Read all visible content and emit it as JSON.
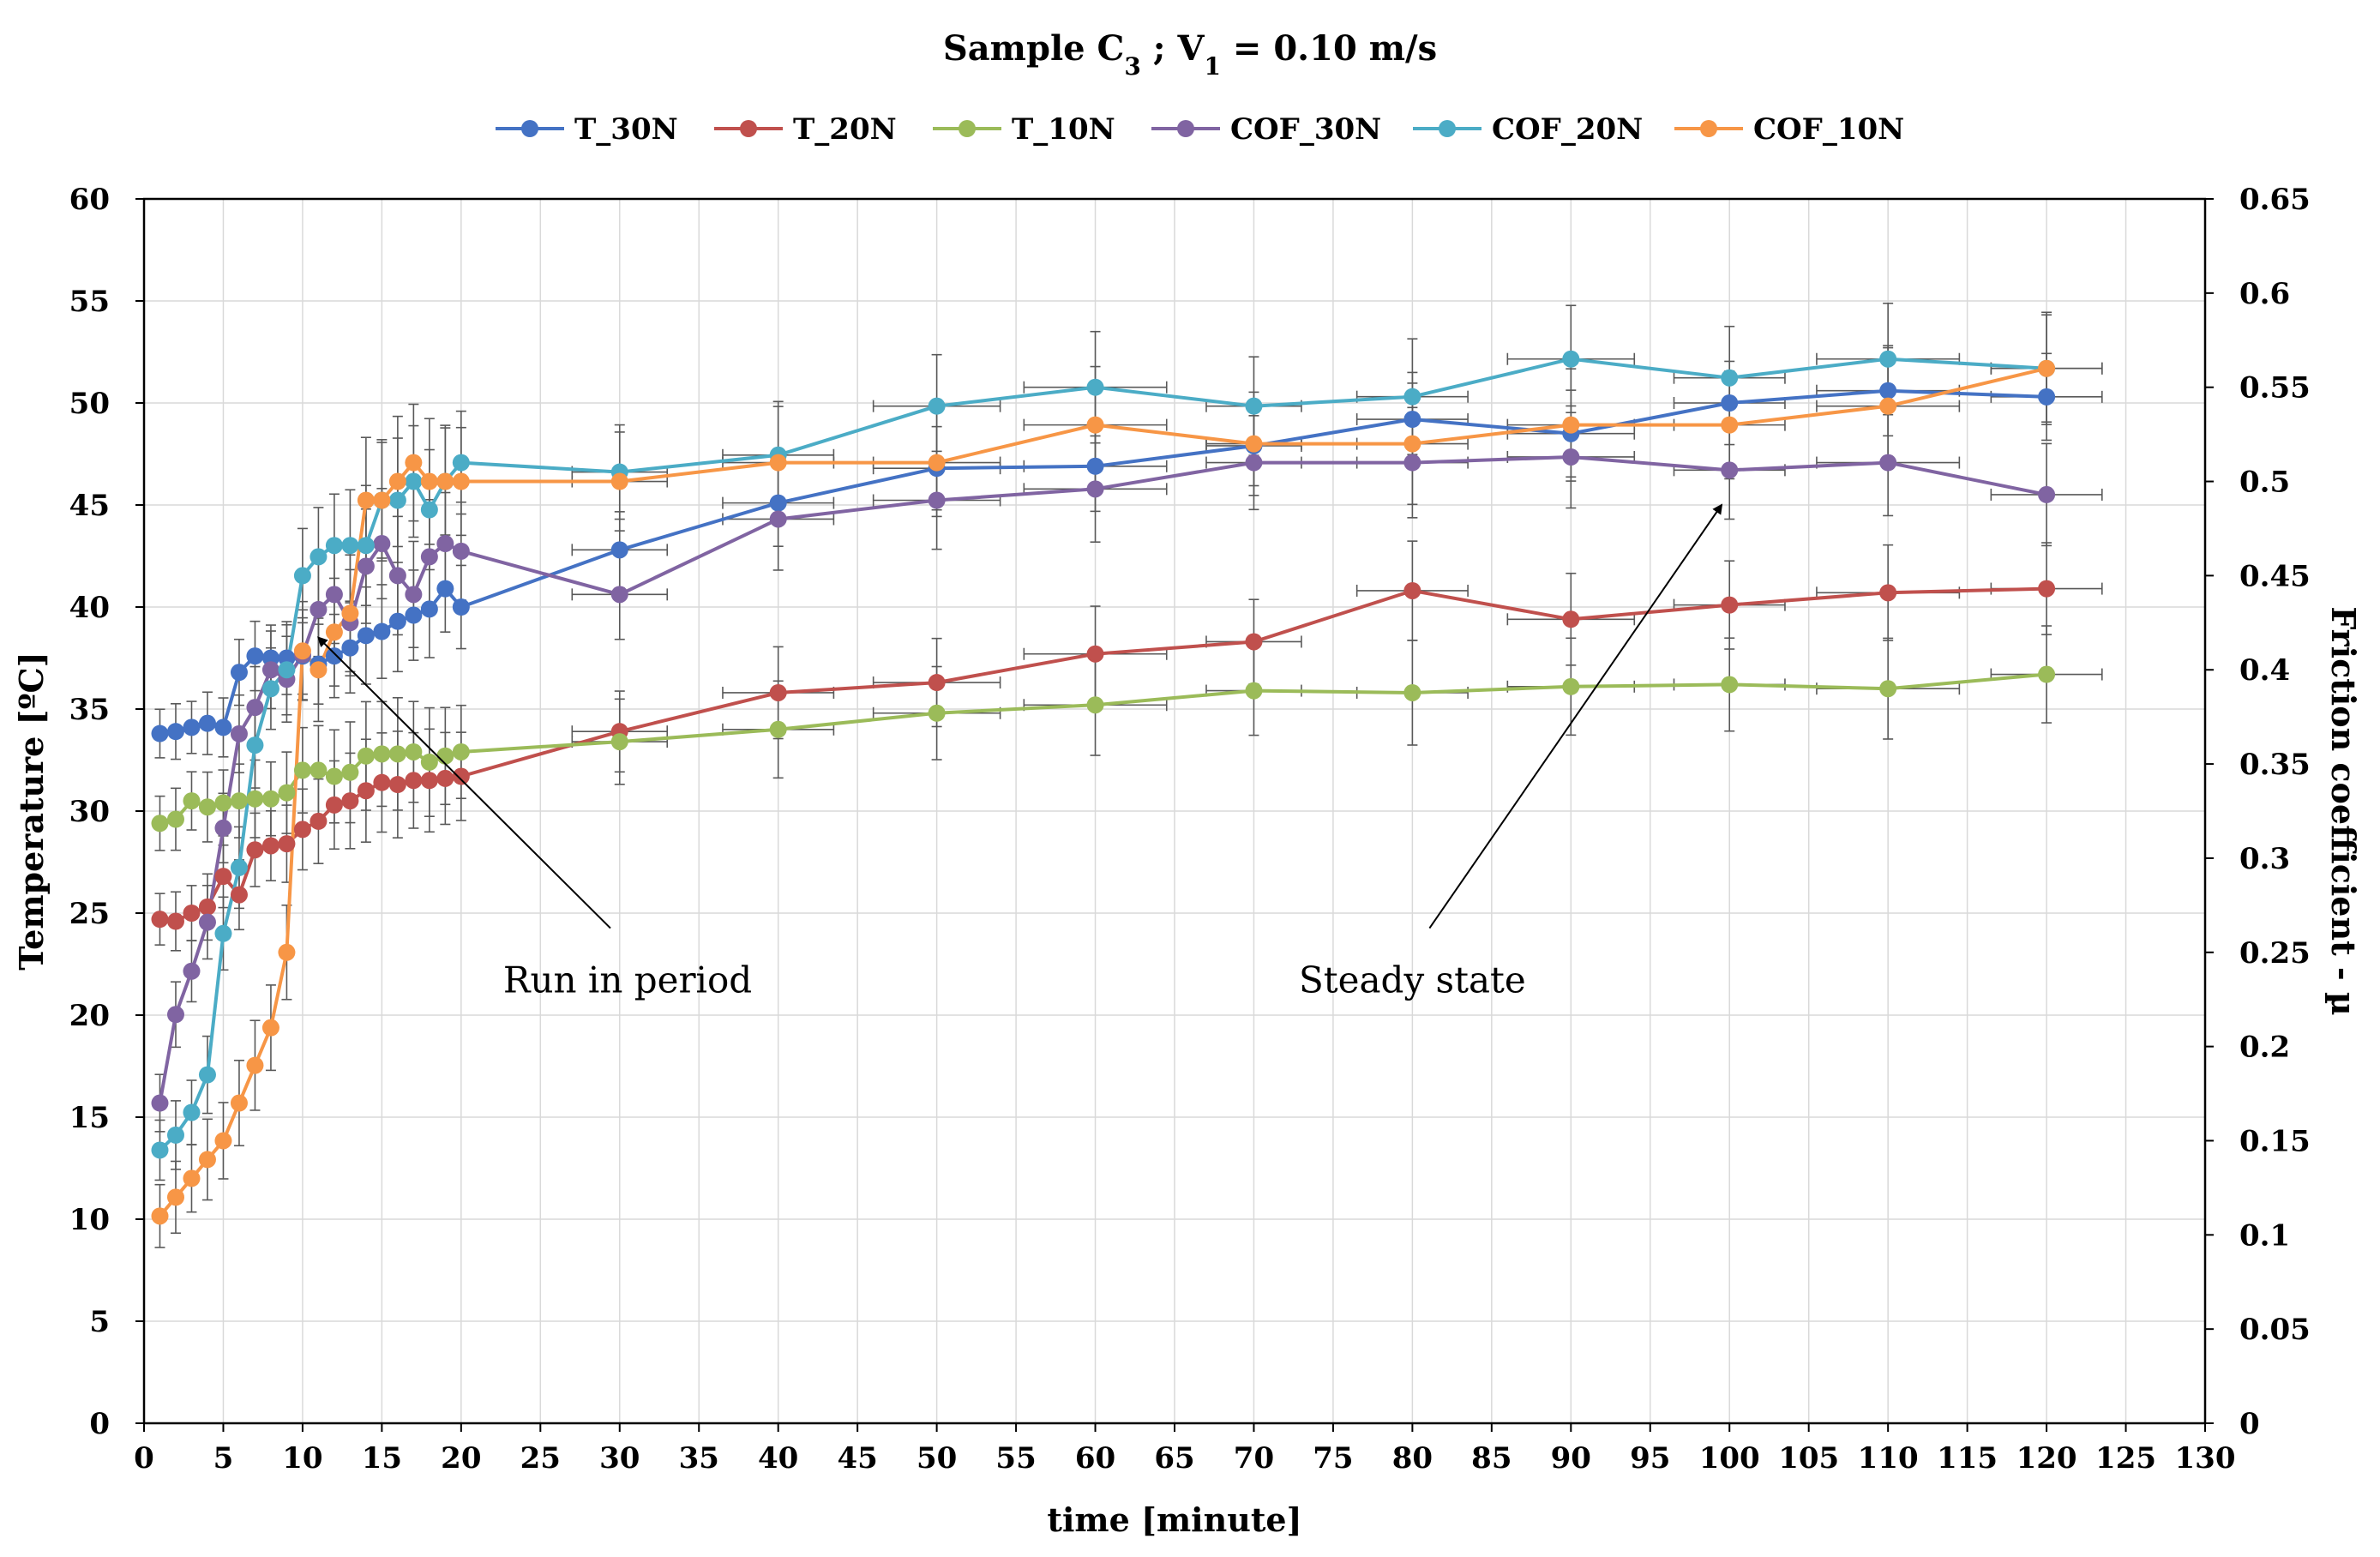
{
  "chart_data": {
    "type": "line",
    "title": {
      "prefix": "Sample C",
      "prefix_sub": "3",
      "sep": " ;  V",
      "v_sub": "1",
      "suffix": " = 0.10 m/s"
    },
    "xlabel": "time [minute]",
    "ylabel_left": "Temperature [ºC]",
    "ylabel_right": "Friction coefficient - µ",
    "xlim": [
      0,
      130
    ],
    "x_ticks": [
      0,
      5,
      10,
      15,
      20,
      25,
      30,
      35,
      40,
      45,
      50,
      55,
      60,
      65,
      70,
      75,
      80,
      85,
      90,
      95,
      100,
      105,
      110,
      115,
      120,
      125,
      130
    ],
    "ylim_left": [
      0,
      60
    ],
    "y_ticks_left": [
      0,
      5,
      10,
      15,
      20,
      25,
      30,
      35,
      40,
      45,
      50,
      55,
      60
    ],
    "ylim_right": [
      0,
      0.65
    ],
    "y_ticks_right": [
      "0",
      "0.05",
      "0.1",
      "0.15",
      "0.2",
      "0.25",
      "0.3",
      "0.35",
      "0.4",
      "0.45",
      "0.5",
      "0.55",
      "0.6",
      "0.65"
    ],
    "grid": true,
    "legend_position": "top-center",
    "x": [
      1,
      2,
      3,
      4,
      5,
      6,
      7,
      8,
      9,
      10,
      11,
      12,
      13,
      14,
      15,
      16,
      17,
      18,
      19,
      20,
      30,
      40,
      50,
      60,
      70,
      80,
      90,
      100,
      110,
      120
    ],
    "series": [
      {
        "name": "T_30N",
        "axis": "left",
        "color": "#4472C4",
        "values": [
          33.8,
          33.9,
          34.1,
          34.3,
          34.1,
          36.8,
          37.6,
          37.5,
          37.5,
          37.6,
          37.2,
          37.6,
          38.0,
          38.6,
          38.8,
          39.3,
          39.6,
          39.9,
          40.9,
          40.0,
          42.8,
          45.1,
          46.8,
          46.9,
          47.9,
          49.2,
          48.5,
          50.0,
          50.6,
          50.3
        ]
      },
      {
        "name": "T_20N",
        "axis": "left",
        "color": "#C0504D",
        "values": [
          24.7,
          24.6,
          25.0,
          25.3,
          26.8,
          25.9,
          28.1,
          28.3,
          28.4,
          29.1,
          29.5,
          30.3,
          30.5,
          31.0,
          31.4,
          31.3,
          31.5,
          31.5,
          31.6,
          31.7,
          33.9,
          35.8,
          36.3,
          37.7,
          38.3,
          40.8,
          39.4,
          40.1,
          40.7,
          40.9
        ]
      },
      {
        "name": "T_10N",
        "axis": "left",
        "color": "#9BBB59",
        "values": [
          29.4,
          29.6,
          30.5,
          30.2,
          30.4,
          30.5,
          30.6,
          30.6,
          30.9,
          32.0,
          32.0,
          31.7,
          31.9,
          32.7,
          32.8,
          32.8,
          32.9,
          32.4,
          32.7,
          32.9,
          33.4,
          34.0,
          34.8,
          35.2,
          35.9,
          35.8,
          36.1,
          36.2,
          36.0,
          36.7
        ]
      },
      {
        "name": "COF_30N",
        "axis": "right",
        "color": "#8064A2",
        "values": [
          0.17,
          0.217,
          0.24,
          0.266,
          0.316,
          0.366,
          0.38,
          0.4,
          0.395,
          0.408,
          0.432,
          0.44,
          0.425,
          0.455,
          0.467,
          0.45,
          0.44,
          0.46,
          0.467,
          0.463,
          0.44,
          0.48,
          0.49,
          0.496,
          0.51,
          0.51,
          0.513,
          0.506,
          0.51,
          0.493
        ]
      },
      {
        "name": "COF_20N",
        "axis": "right",
        "color": "#4BACC6",
        "values": [
          0.145,
          0.153,
          0.165,
          0.185,
          0.26,
          0.295,
          0.36,
          0.39,
          0.4,
          0.45,
          0.46,
          0.466,
          0.466,
          0.466,
          0.49,
          0.49,
          0.5,
          0.485,
          0.5,
          0.51,
          0.505,
          0.514,
          0.54,
          0.55,
          0.54,
          0.545,
          0.565,
          0.555,
          0.565,
          0.56
        ]
      },
      {
        "name": "COF_10N",
        "axis": "right",
        "color": "#F79646",
        "values": [
          0.11,
          0.12,
          0.13,
          0.14,
          0.15,
          0.17,
          0.19,
          0.21,
          0.25,
          0.41,
          0.4,
          0.42,
          0.43,
          0.49,
          0.49,
          0.5,
          0.51,
          0.5,
          0.5,
          0.5,
          0.5,
          0.51,
          0.51,
          0.53,
          0.52,
          0.52,
          0.53,
          0.53,
          0.54,
          0.56
        ]
      }
    ],
    "annotations": [
      {
        "text": "Run in period",
        "target_x": 11,
        "target_y_left": 38.5,
        "text_x": 30.5,
        "text_y_left": 23.0
      },
      {
        "text": "Steady state",
        "target_x": 99.5,
        "target_y_left": 45.0,
        "text_x": 80,
        "text_y_left": 23.0
      }
    ]
  }
}
